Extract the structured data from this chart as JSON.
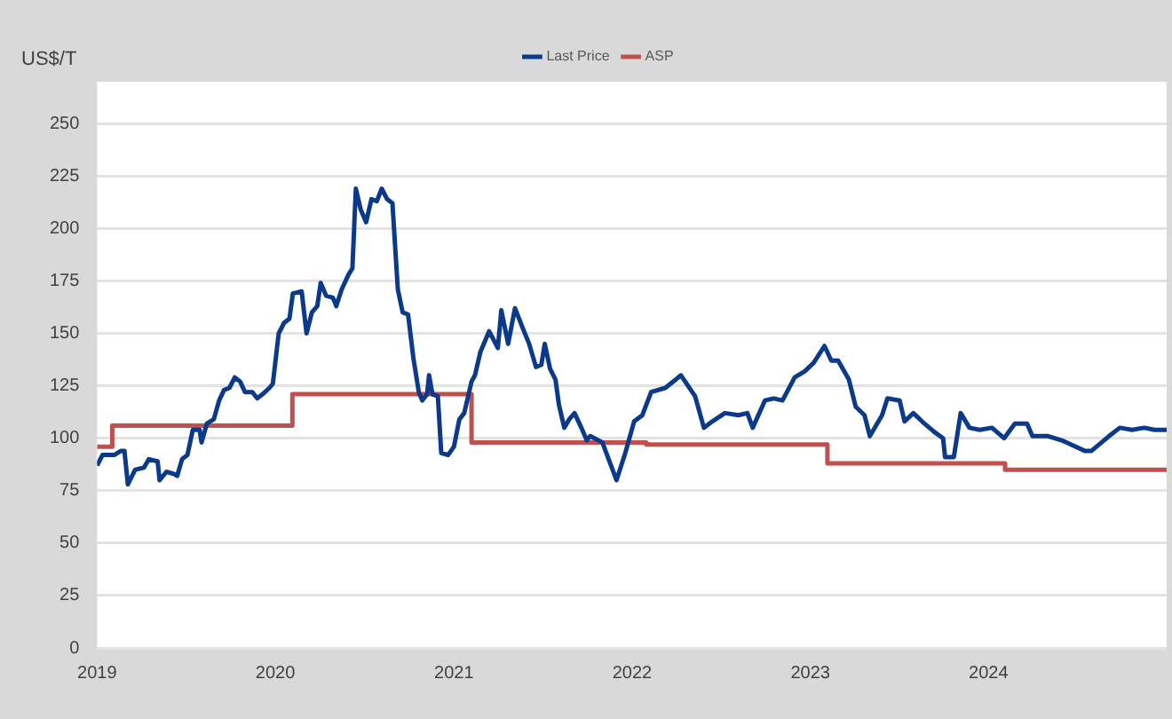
{
  "chart_data": {
    "type": "line",
    "ylabel": "US$/T",
    "legend": "top",
    "grid": "y",
    "marker": "none",
    "line_style": "solid",
    "xlim": [
      "2019-01-01",
      "2024-12-31"
    ],
    "xticks": [
      "2019",
      "2020",
      "2021",
      "2022",
      "2023",
      "2024"
    ],
    "ylim": [
      0,
      270
    ],
    "yticks": [
      0,
      25,
      50,
      75,
      100,
      125,
      150,
      175,
      200,
      225,
      250
    ],
    "series": [
      {
        "name": "Last Price",
        "color": "#0b3a8a",
        "x": [
          "2019-01-01",
          "2019-01-12",
          "2019-02-05",
          "2019-02-19",
          "2019-02-26",
          "2019-03-05",
          "2019-03-20",
          "2019-04-07",
          "2019-04-17",
          "2019-05-05",
          "2019-05-09",
          "2019-05-23",
          "2019-06-07",
          "2019-06-14",
          "2019-06-24",
          "2019-07-05",
          "2019-07-16",
          "2019-07-30",
          "2019-08-03",
          "2019-08-14",
          "2019-08-28",
          "2019-09-08",
          "2019-09-18",
          "2019-09-29",
          "2019-10-10",
          "2019-10-21",
          "2019-10-31",
          "2019-11-15",
          "2019-11-25",
          "2019-12-06",
          "2019-12-20",
          "2019-12-27",
          "2020-01-08",
          "2020-01-19",
          "2020-01-30",
          "2020-02-06",
          "2020-02-24",
          "2020-03-05",
          "2020-03-16",
          "2020-03-27",
          "2020-04-03",
          "2020-04-14",
          "2020-04-28",
          "2020-05-05",
          "2020-05-16",
          "2020-05-30",
          "2020-06-07",
          "2020-06-14",
          "2020-06-24",
          "2020-07-05",
          "2020-07-16",
          "2020-07-27",
          "2020-08-06",
          "2020-08-17",
          "2020-08-28",
          "2020-09-08",
          "2020-09-18",
          "2020-09-29",
          "2020-10-10",
          "2020-10-21",
          "2020-10-28",
          "2020-11-07",
          "2020-11-11",
          "2020-11-18",
          "2020-11-29",
          "2020-12-06",
          "2020-12-20",
          "2021-01-01",
          "2021-01-12",
          "2021-01-22",
          "2021-01-30",
          "2021-02-06",
          "2021-02-13",
          "2021-02-24",
          "2021-03-14",
          "2021-04-01",
          "2021-04-08",
          "2021-04-22",
          "2021-05-06",
          "2021-05-21",
          "2021-06-04",
          "2021-06-18",
          "2021-06-29",
          "2021-07-06",
          "2021-07-17",
          "2021-07-28",
          "2021-08-04",
          "2021-08-15",
          "2021-08-25",
          "2021-09-05",
          "2021-09-19",
          "2021-09-30",
          "2021-10-07",
          "2021-11-01",
          "2021-11-30",
          "2021-12-18",
          "2022-01-05",
          "2022-01-22",
          "2022-02-09",
          "2022-03-10",
          "2022-04-11",
          "2022-05-10",
          "2022-05-28",
          "2022-06-14",
          "2022-07-10",
          "2022-08-07",
          "2022-08-25",
          "2022-09-05",
          "2022-09-30",
          "2022-10-18",
          "2022-11-05",
          "2022-11-30",
          "2022-12-21",
          "2023-01-08",
          "2023-01-30",
          "2023-02-13",
          "2023-02-27",
          "2023-03-21",
          "2023-04-04",
          "2023-04-22",
          "2023-05-03",
          "2023-05-28",
          "2023-06-08",
          "2023-07-03",
          "2023-07-13",
          "2023-07-31",
          "2023-08-18",
          "2023-09-12",
          "2023-09-30",
          "2023-10-04",
          "2023-10-22",
          "2023-11-05",
          "2023-11-23",
          "2023-12-14",
          "2024-01-08",
          "2024-02-02",
          "2024-02-24",
          "2024-03-20",
          "2024-03-31",
          "2024-05-02",
          "2024-05-30",
          "2024-07-16",
          "2024-07-30",
          "2024-09-04",
          "2024-09-26",
          "2024-10-21",
          "2024-11-15",
          "2024-12-06",
          "2024-12-31"
        ],
        "values": [
          87,
          92,
          92,
          94,
          94,
          78,
          85,
          86,
          90,
          89,
          80,
          84,
          83,
          82,
          90,
          92,
          104,
          104,
          98,
          107,
          109,
          118,
          123,
          124,
          129,
          127,
          122,
          122,
          119,
          121,
          124,
          126,
          150,
          155,
          157,
          169,
          170,
          150,
          160,
          163,
          174,
          168,
          167,
          163,
          171,
          178,
          181,
          219,
          209,
          203,
          214,
          213,
          219,
          214,
          212,
          171,
          160,
          159,
          138,
          122,
          118,
          121,
          130,
          121,
          120,
          93,
          92,
          96,
          109,
          112,
          120,
          127,
          130,
          141,
          151,
          143,
          161,
          145,
          162,
          153,
          145,
          134,
          135,
          145,
          133,
          128,
          116,
          105,
          109,
          112,
          105,
          99,
          101,
          98,
          80,
          93,
          108,
          111,
          122,
          124,
          130,
          120,
          105,
          108,
          112,
          111,
          112,
          105,
          118,
          119,
          118,
          129,
          132,
          136,
          144,
          137,
          137,
          128,
          115,
          111,
          101,
          111,
          119,
          118,
          108,
          112,
          108,
          103,
          100,
          91,
          91,
          112,
          105,
          104,
          105,
          100,
          107,
          107,
          101,
          101,
          99,
          94,
          94,
          101,
          105,
          104,
          105,
          104,
          104
        ]
      },
      {
        "name": "ASP",
        "type": "step",
        "color": "#c0504d",
        "x": [
          "2019-01-01",
          "2019-02-01",
          "2020-02-05",
          "2021-02-06",
          "2022-01-30",
          "2023-02-05",
          "2024-02-04",
          "2024-12-31"
        ],
        "values": [
          96,
          106,
          121,
          98,
          97,
          88,
          85,
          85
        ]
      }
    ]
  }
}
